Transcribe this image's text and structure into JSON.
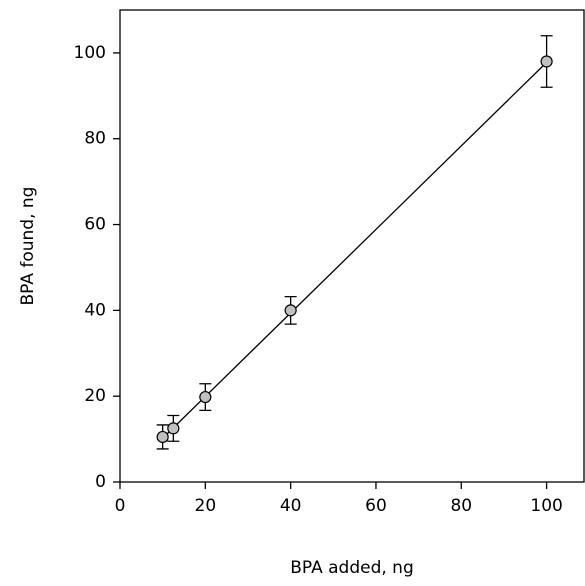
{
  "chart_data": {
    "type": "scatter",
    "x_label": "BPA added, ng",
    "y_label": "BPA found, ng",
    "series": [
      {
        "x": [
          10,
          12.5,
          20,
          40,
          100
        ],
        "values": [
          10.5,
          12.5,
          19.8,
          40,
          98
        ],
        "errors": [
          2.8,
          3,
          3.1,
          3.2,
          6
        ],
        "color": "#c0c0c0"
      }
    ],
    "fit": {
      "x": [
        10,
        100
      ],
      "values": [
        10.2,
        97.8
      ],
      "color": "#000000"
    },
    "xlim": [
      0,
      109
    ],
    "ylim": [
      0,
      110
    ],
    "xticks": [
      0,
      20,
      40,
      60,
      80,
      100
    ],
    "yticks": [
      0,
      20,
      40,
      60,
      80,
      100
    ]
  }
}
